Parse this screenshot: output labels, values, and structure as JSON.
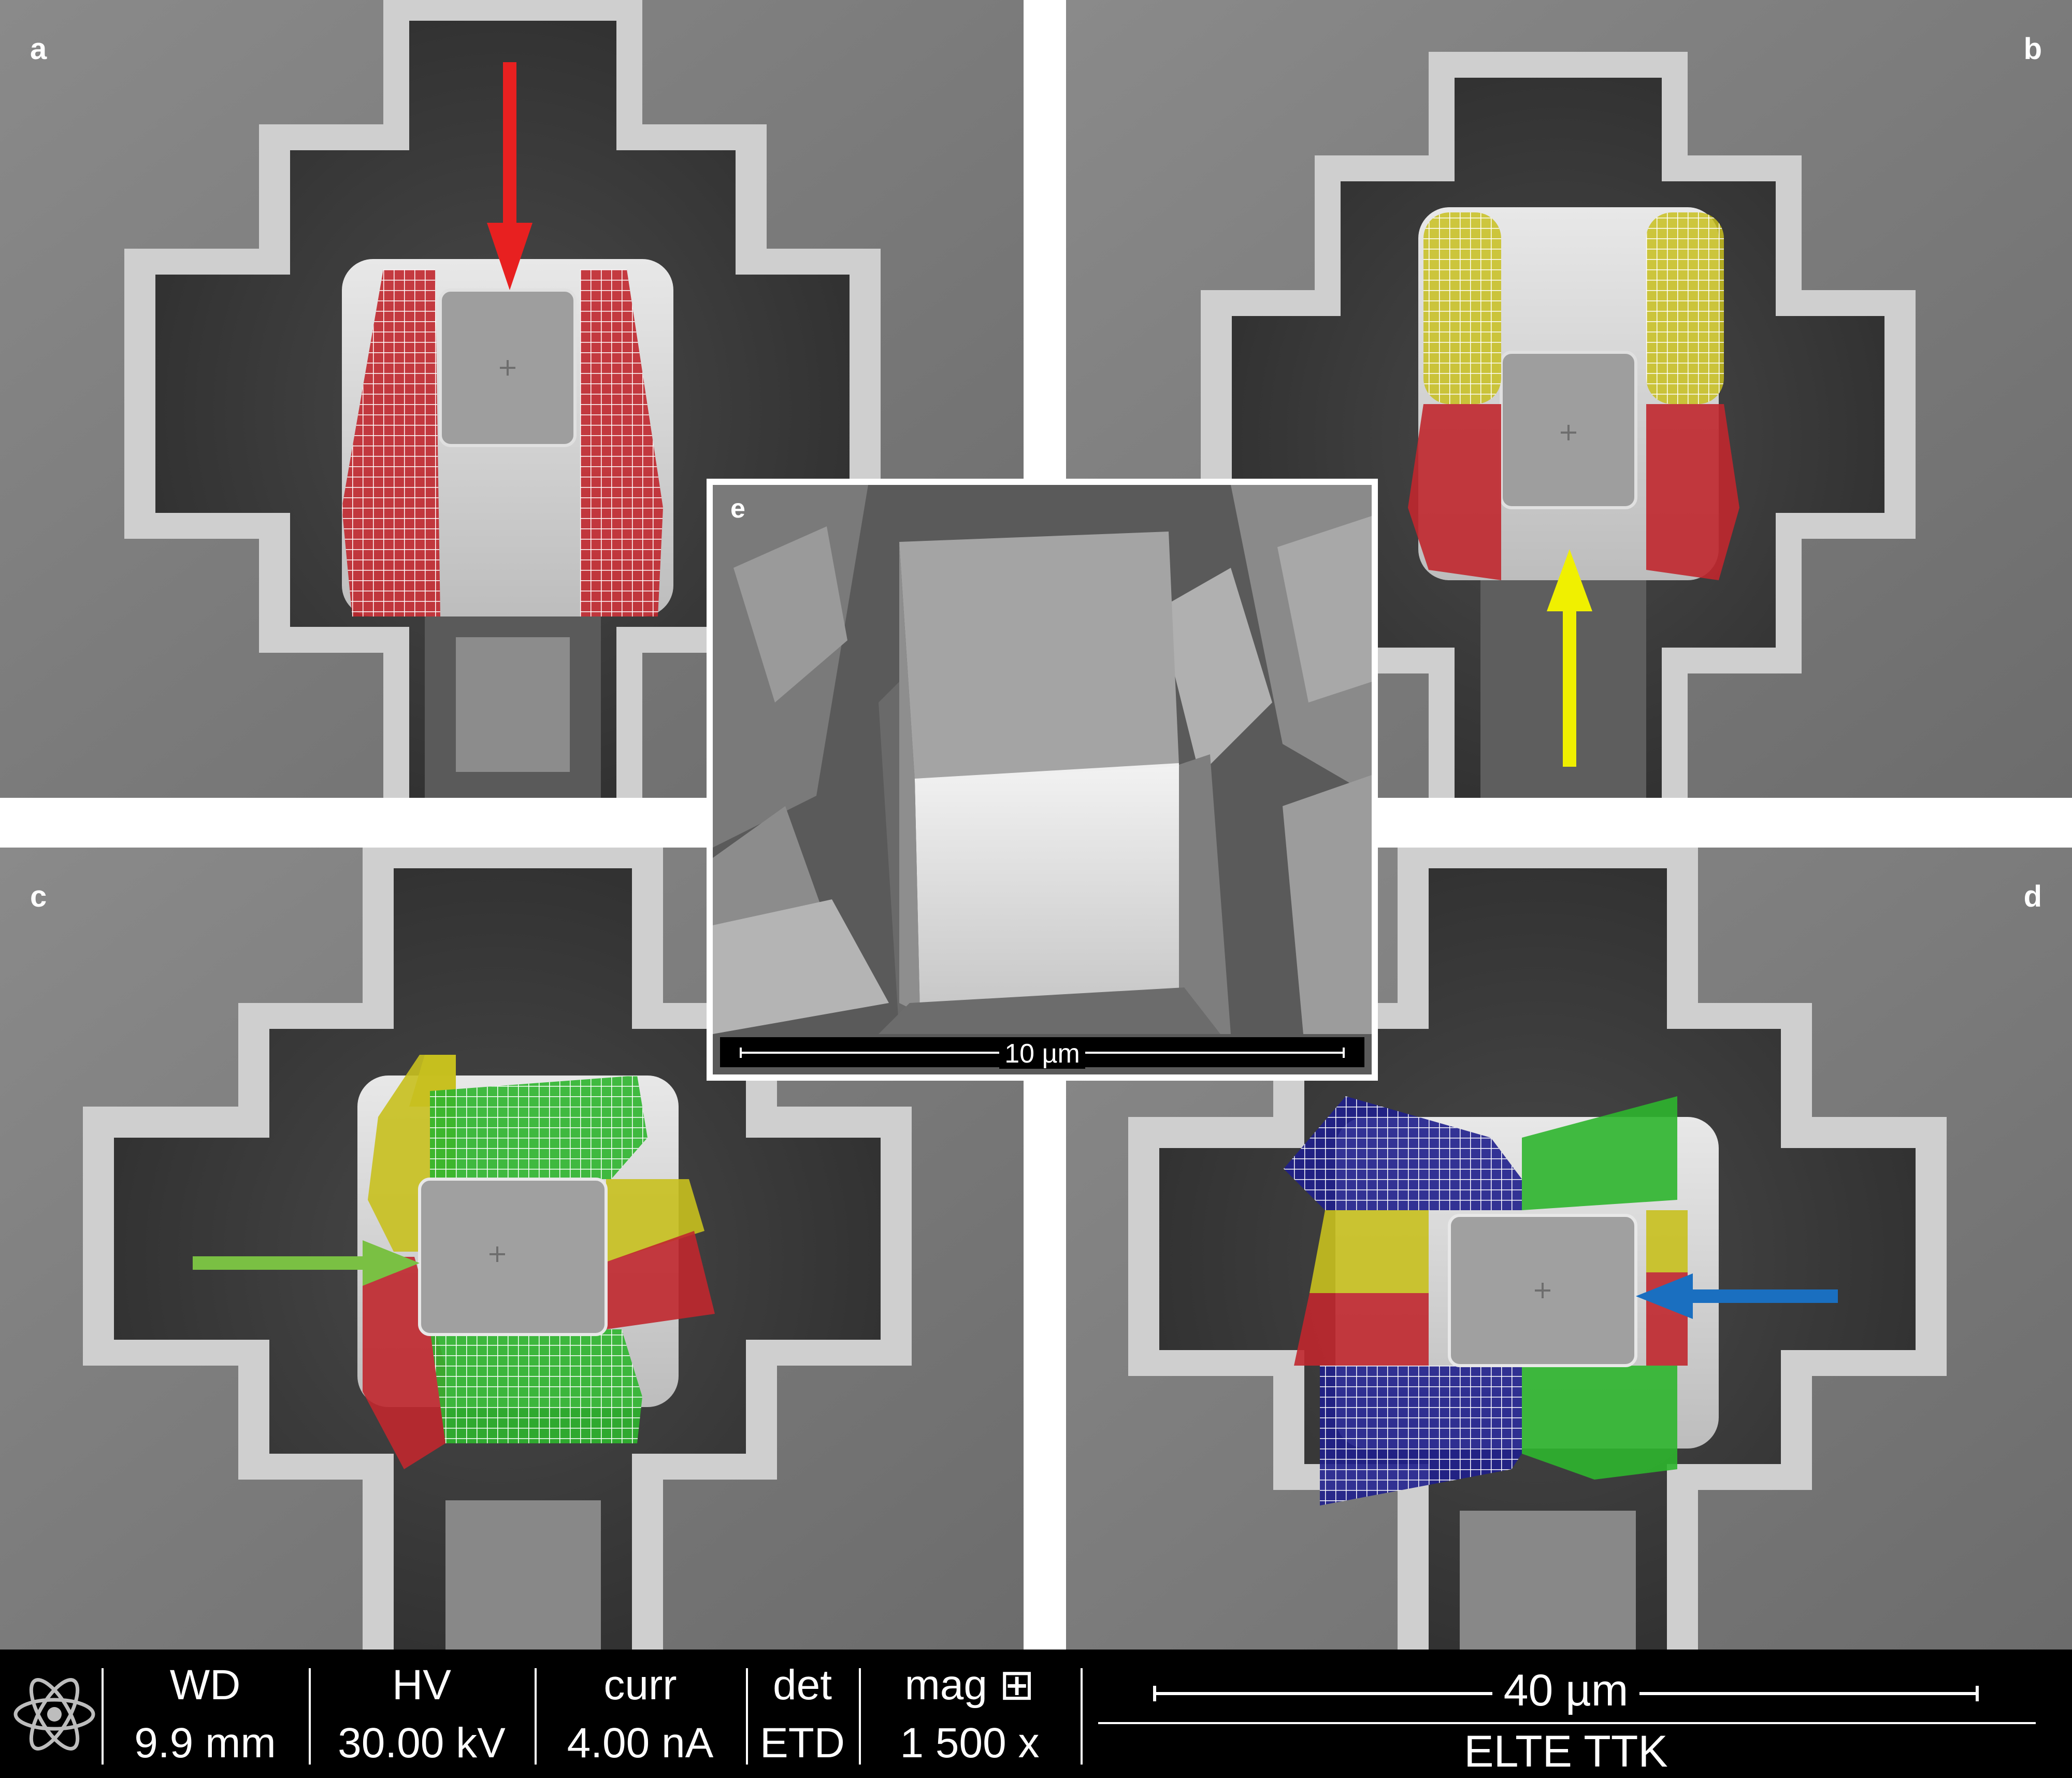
{
  "panels": {
    "a": {
      "label": "a"
    },
    "b": {
      "label": "b"
    },
    "c": {
      "label": "c"
    },
    "d": {
      "label": "d"
    },
    "e": {
      "label": "e",
      "scale_bar": "10 µm"
    }
  },
  "arrows": {
    "a": "#e82020",
    "b": "#f0f000",
    "c": "#7ac043",
    "d": "#1a6fc0"
  },
  "overlay_colors": {
    "red": "#c0272d",
    "yellow": "#c8c01e",
    "green": "#2eb52e",
    "blue": "#1f1f8c",
    "grid_lines": "#ffffff"
  },
  "info_bar": {
    "fields": [
      {
        "label": "WD",
        "value": "9.9 mm"
      },
      {
        "label": "HV",
        "value": "30.00 kV"
      },
      {
        "label": "curr",
        "value": "4.00 nA"
      },
      {
        "label": "det",
        "value": "ETD"
      },
      {
        "label": "mag ⊞",
        "value": "1 500 x"
      }
    ],
    "scale_bar": "40 µm",
    "institution": "ELTE TTK"
  }
}
